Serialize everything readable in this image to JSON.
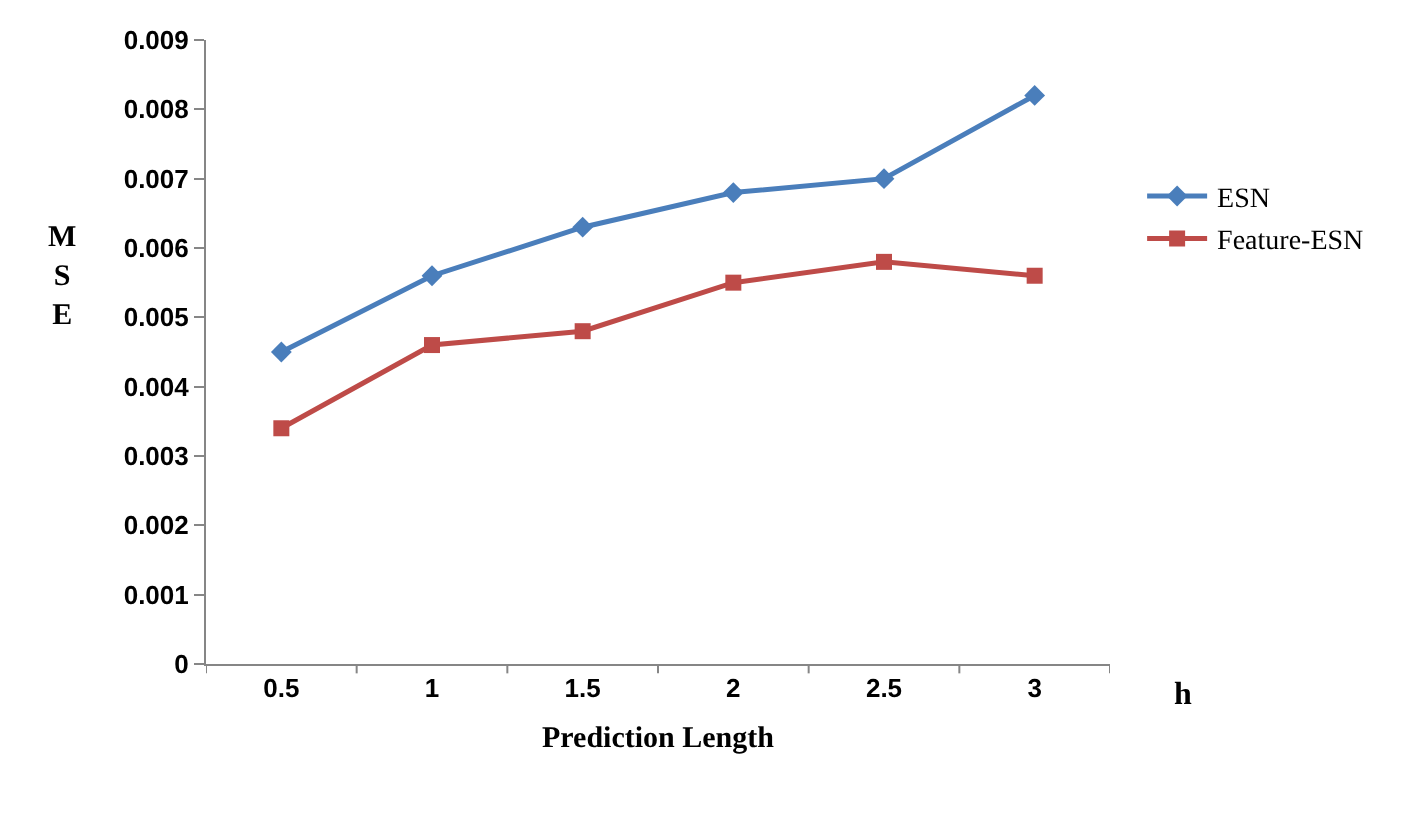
{
  "chart_data": {
    "type": "line",
    "xlabel": "Prediction Length",
    "ylabel": "MSE",
    "categories": [
      "0.5",
      "1",
      "1.5",
      "2",
      "2.5",
      "3"
    ],
    "series": [
      {
        "name": "ESN",
        "color": "#4a7ebb",
        "marker": "diamond",
        "values": [
          0.0045,
          0.0056,
          0.0063,
          0.0068,
          0.007,
          0.0082
        ]
      },
      {
        "name": "Feature-ESN",
        "color": "#be4b48",
        "marker": "square",
        "values": [
          0.0034,
          0.0046,
          0.0048,
          0.0055,
          0.0058,
          0.0056
        ]
      }
    ],
    "ylim": [
      0,
      0.009
    ],
    "yticks": [
      0,
      0.001,
      0.002,
      0.003,
      0.004,
      0.005,
      0.006,
      0.007,
      0.008,
      0.009
    ],
    "grid": false,
    "legend": "right",
    "annotations": [
      "h"
    ]
  }
}
